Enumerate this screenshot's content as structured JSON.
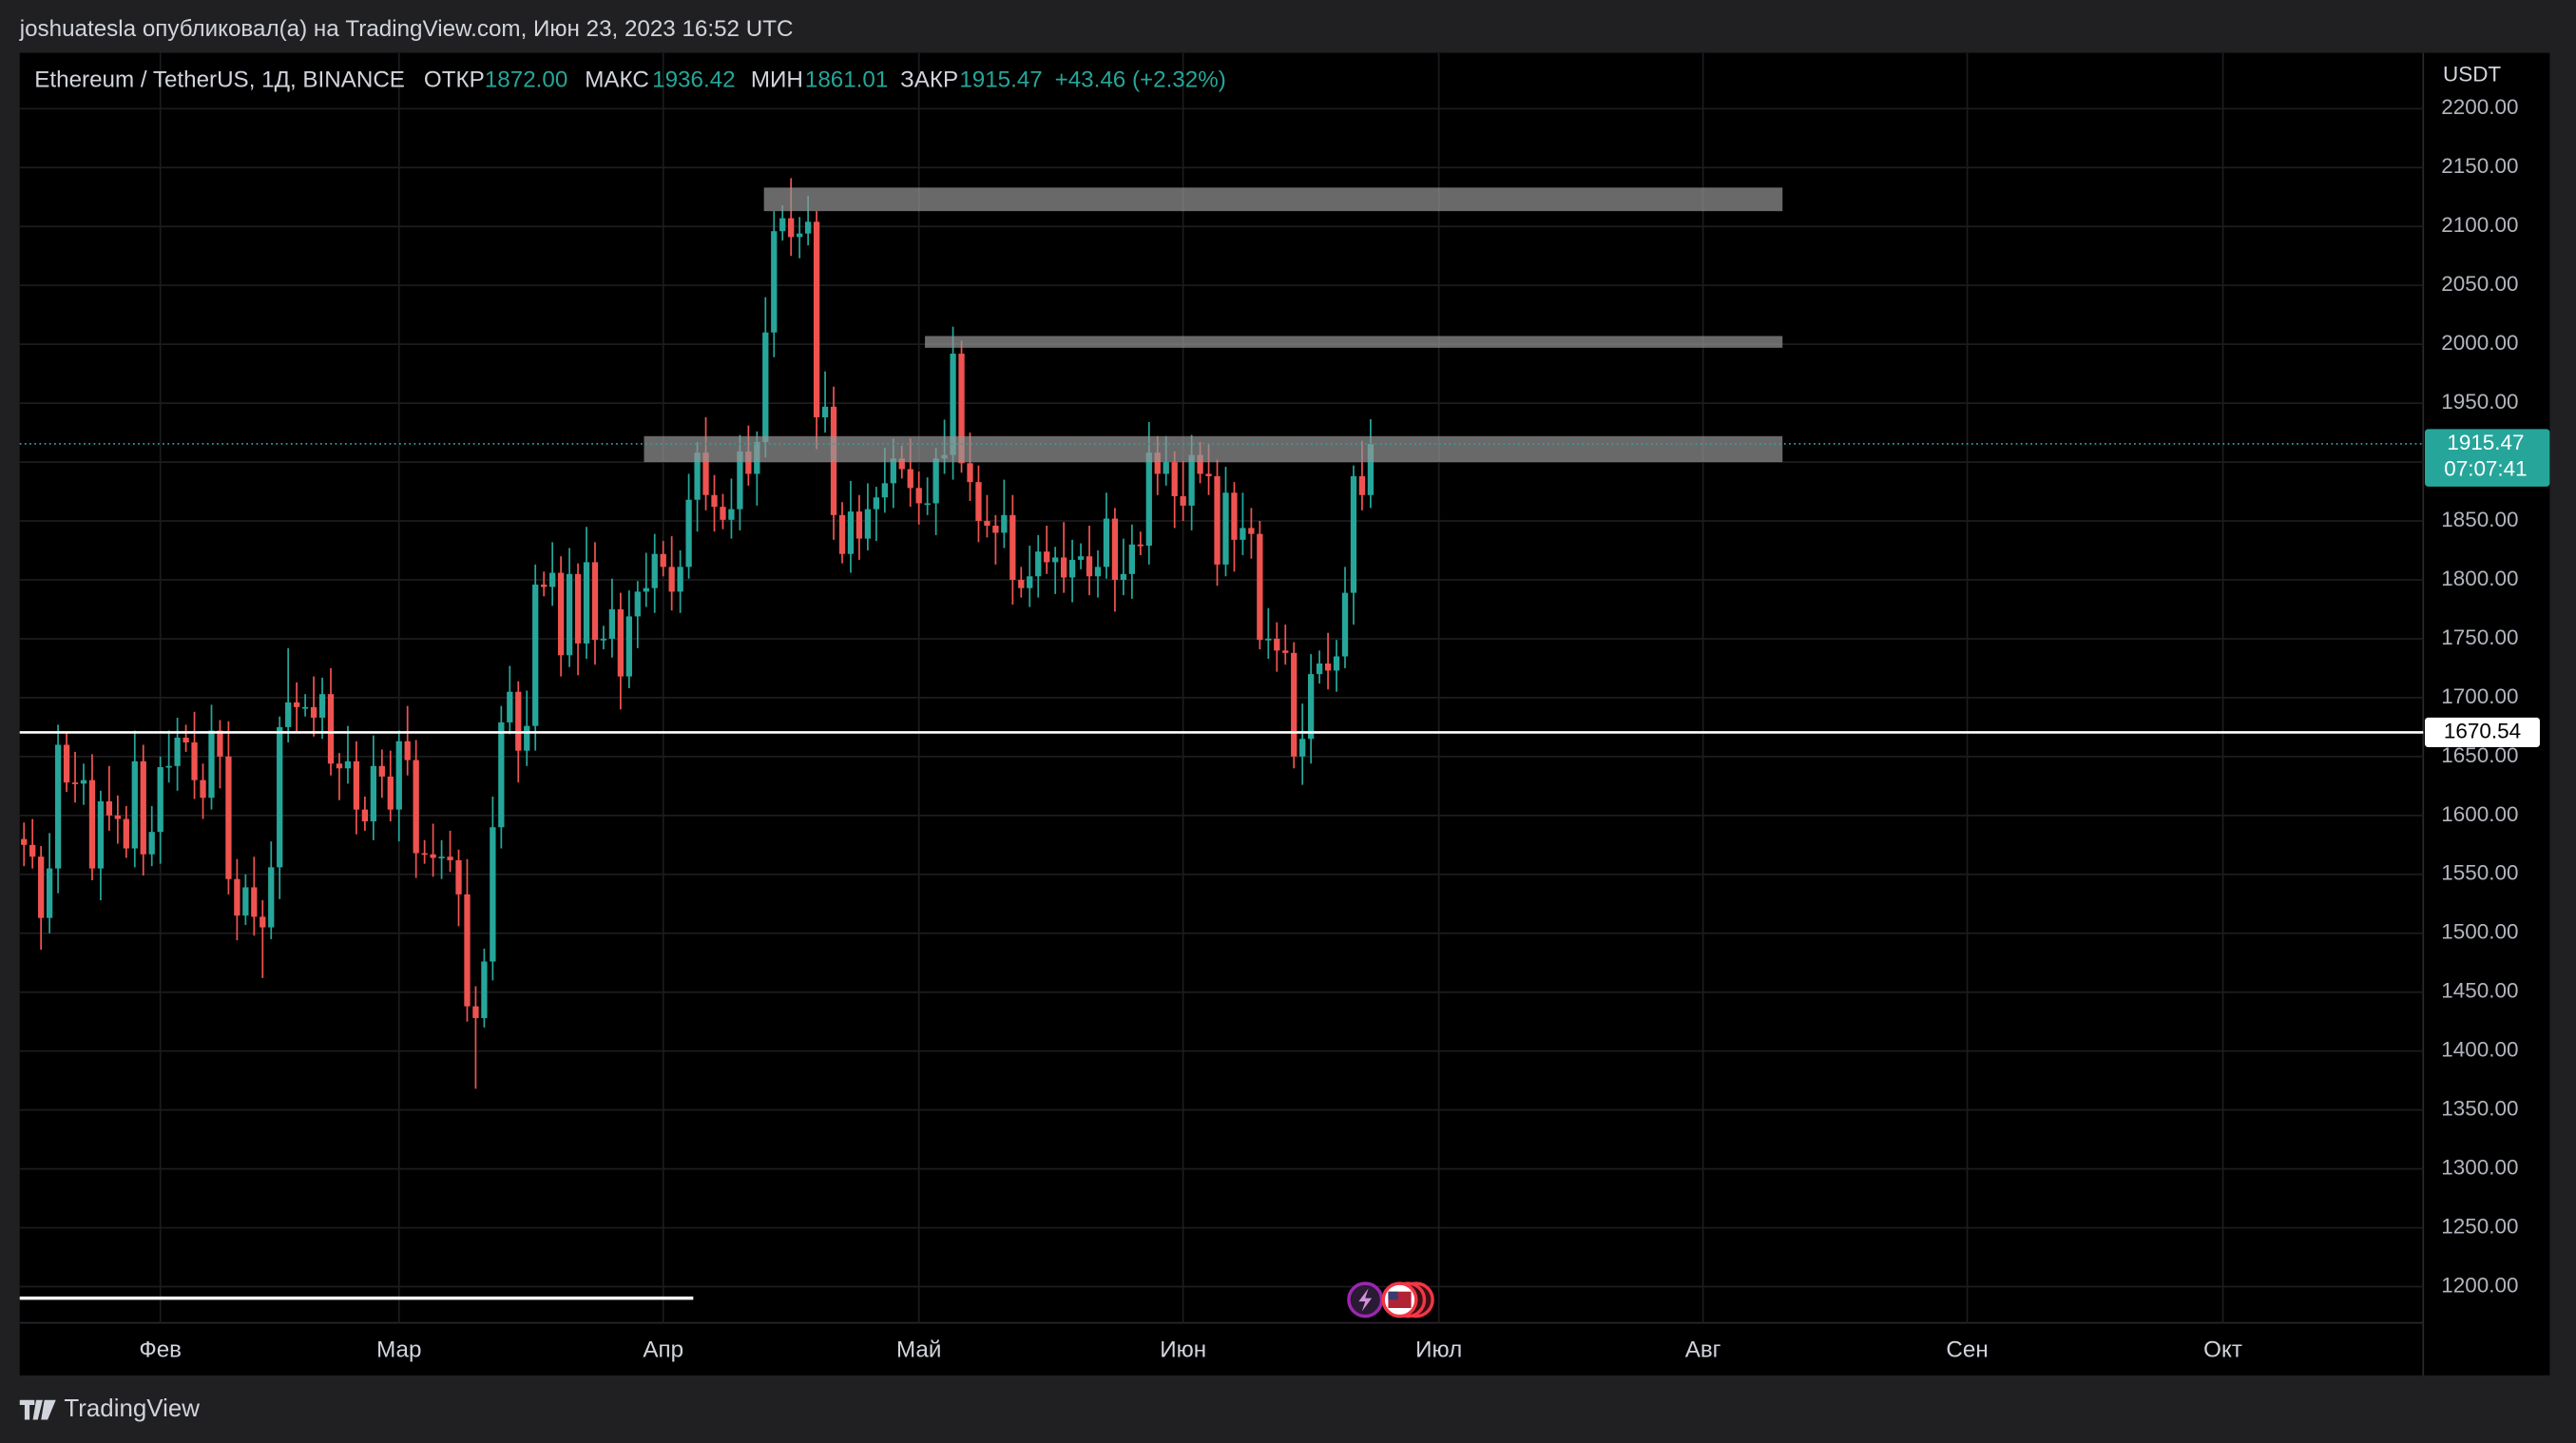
{
  "header": {
    "publisher": "joshuatesla опубликовал(а) на TradingView.com, Июн 23, 2023 16:52 UTC"
  },
  "legend_info": {
    "symbol": "Ethereum / TetherUS, 1Д, BINANCE",
    "open_label": "ОТКР",
    "open": "1872.00",
    "high_label": "МАКС",
    "high": "1936.42",
    "low_label": "МИН",
    "low": "1861.01",
    "close_label": "ЗАКР",
    "close": "1915.47",
    "change": "+43.46 (+2.32%)"
  },
  "footer": {
    "brand": "TradingView"
  },
  "chart_data": {
    "type": "candlestick",
    "unit": "USDT",
    "up_color": "#26a69a",
    "down_color": "#ef5350",
    "grid": true,
    "ylim": [
      1169.3,
      2247.4
    ],
    "yticks": [
      {
        "value": 1200,
        "label": "1200.00"
      },
      {
        "value": 1250,
        "label": "1250.00"
      },
      {
        "value": 1300,
        "label": "1300.00"
      },
      {
        "value": 1350,
        "label": "1350.00"
      },
      {
        "value": 1400,
        "label": "1400.00"
      },
      {
        "value": 1450,
        "label": "1450.00"
      },
      {
        "value": 1500,
        "label": "1500.00"
      },
      {
        "value": 1550,
        "label": "1550.00"
      },
      {
        "value": 1600,
        "label": "1600.00"
      },
      {
        "value": 1650,
        "label": "1650.00"
      },
      {
        "value": 1700,
        "label": "1700.00"
      },
      {
        "value": 1750,
        "label": "1750.00"
      },
      {
        "value": 1800,
        "label": "1800.00"
      },
      {
        "value": 1850,
        "label": "1850.00"
      },
      {
        "value": 1900,
        "label": "1900.00"
      },
      {
        "value": 1950,
        "label": "1950.00"
      },
      {
        "value": 2000,
        "label": "2000.00"
      },
      {
        "value": 2050,
        "label": "2050.00"
      },
      {
        "value": 2100,
        "label": "2100.00"
      },
      {
        "value": 2150,
        "label": "2150.00"
      },
      {
        "value": 2200,
        "label": "2200.00"
      }
    ],
    "categories": [
      null,
      null,
      null,
      null,
      null,
      null,
      null,
      null,
      null,
      null,
      null,
      null,
      null,
      null,
      null,
      null,
      "Фев",
      null,
      null,
      null,
      null,
      null,
      null,
      null,
      null,
      null,
      null,
      null,
      null,
      null,
      null,
      null,
      null,
      null,
      null,
      null,
      null,
      null,
      null,
      null,
      null,
      null,
      null,
      null,
      "Мар",
      null,
      null,
      null,
      null,
      null,
      null,
      null,
      null,
      null,
      null,
      null,
      null,
      null,
      null,
      null,
      null,
      null,
      null,
      null,
      null,
      null,
      null,
      null,
      null,
      null,
      null,
      null,
      null,
      null,
      null,
      "Апр",
      null,
      null,
      null,
      null,
      null,
      null,
      null,
      null,
      null,
      null,
      null,
      null,
      null,
      null,
      null,
      null,
      null,
      null,
      null,
      null,
      null,
      null,
      null,
      null,
      null,
      null,
      null,
      null,
      null,
      "Май",
      null,
      null,
      null,
      null,
      null,
      null,
      null,
      null,
      null,
      null,
      null,
      null,
      null,
      null,
      null,
      null,
      null,
      null,
      null,
      null,
      null,
      null,
      null,
      null,
      null,
      null,
      null,
      null,
      null,
      null,
      "Июн",
      null,
      null,
      null,
      null,
      null,
      null,
      null,
      null,
      null,
      null,
      null,
      null,
      null,
      null,
      null,
      null,
      null,
      null,
      null,
      null,
      null,
      null,
      null,
      null,
      null,
      null,
      null,
      null,
      null,
      "Июл",
      null,
      null,
      null,
      null,
      null,
      null,
      null,
      null,
      null,
      null,
      null,
      null,
      null,
      null,
      null,
      null,
      null,
      null,
      null,
      null,
      null,
      null,
      null,
      null,
      null,
      null,
      null,
      null,
      null,
      null,
      "Авг",
      null,
      null,
      null,
      null,
      null,
      null,
      null,
      null,
      null,
      null,
      null,
      null,
      null,
      null,
      null,
      null,
      null,
      null,
      null,
      null,
      null,
      null,
      null,
      null,
      null,
      null,
      null,
      null,
      null,
      null,
      "Сен",
      null,
      null,
      null,
      null,
      null,
      null,
      null,
      null,
      null,
      null,
      null,
      null,
      null,
      null,
      null,
      null,
      null,
      null,
      null,
      null,
      null,
      null,
      null,
      null,
      null,
      null,
      null,
      null,
      null,
      "Окт",
      null,
      null,
      null,
      null,
      null,
      null,
      null,
      null,
      null,
      null,
      null,
      null,
      null,
      null,
      null,
      null,
      null,
      null,
      null,
      null,
      null,
      null,
      null
    ],
    "open": [
      1580,
      1575,
      1565,
      1513,
      1555,
      1660,
      1628,
      1627,
      1630,
      1555,
      1612,
      1600,
      1597,
      1572,
      1646,
      1567,
      1586,
      1641,
      1642,
      1666,
      1662,
      1630,
      1615,
      1672,
      1650,
      1546,
      1515,
      1539,
      1514,
      1505,
      1556,
      1675,
      1696,
      1692,
      1692,
      1683,
      1703,
      1644,
      1640,
      1646,
      1605,
      1595,
      1642,
      1633,
      1605,
      1663,
      1647,
      1568,
      1567,
      1564,
      1565,
      1562,
      1533,
      1438,
      1428,
      1476,
      1590,
      1679,
      1705,
      1655,
      1676,
      1796,
      1794,
      1806,
      1736,
      1805,
      1746,
      1815,
      1749,
      1750,
      1775,
      1718,
      1769,
      1790,
      1793,
      1822,
      1811,
      1790,
      1811,
      1868,
      1908,
      1872,
      1862,
      1851,
      1860,
      1909,
      1890,
      1917,
      2010,
      2096,
      2107,
      2091,
      2094,
      2104,
      1938,
      1947,
      1855,
      1822,
      1858,
      1835,
      1860,
      1870,
      1882,
      1903,
      1894,
      1878,
      1865,
      1865,
      1903,
      1906,
      1992,
      1899,
      1883,
      1850,
      1846,
      1840,
      1855,
      1800,
      1793,
      1803,
      1824,
      1815,
      1819,
      1802,
      1817,
      1820,
      1803,
      1811,
      1852,
      1800,
      1805,
      1830,
      1829,
      1908,
      1890,
      1900,
      1871,
      1863,
      1906,
      1890,
      1888,
      1813,
      1874,
      1834,
      1844,
      1839,
      1749,
      1750,
      1740,
      1738,
      1650,
      1665,
      1720,
      1729,
      1723,
      1735,
      1789,
      1888,
      1872,
      null,
      null,
      null,
      null,
      null,
      null,
      null,
      null,
      null,
      null,
      null,
      null,
      null,
      null,
      null,
      null,
      null,
      null,
      null,
      null,
      null,
      null,
      null,
      null,
      null,
      null,
      null,
      null,
      null,
      null,
      null,
      null,
      null,
      null,
      null,
      null,
      null,
      null,
      null,
      null,
      null,
      null,
      null,
      null,
      null,
      null,
      null,
      null,
      null,
      null,
      null,
      null,
      null,
      null,
      null,
      null,
      null,
      null,
      null,
      null,
      null,
      null,
      null,
      null,
      null,
      null,
      null,
      null,
      null,
      null,
      null,
      null,
      null,
      null,
      null,
      null,
      null,
      null,
      null,
      null,
      null,
      null,
      null,
      null,
      null,
      null,
      null,
      null,
      null,
      null,
      null,
      null,
      null,
      null,
      null,
      null,
      null,
      null,
      null,
      null,
      null,
      null,
      null,
      null,
      null,
      null,
      null,
      null,
      null,
      null,
      null,
      null,
      null,
      null,
      null,
      null,
      null,
      null,
      null,
      null,
      null,
      null,
      null
    ],
    "high": [
      1594,
      1597,
      1574,
      1585,
      1677,
      1671,
      1654,
      1644,
      1652,
      1621,
      1642,
      1617,
      1608,
      1672,
      1660,
      1608,
      1650,
      1672,
      1683,
      1677,
      1688,
      1644,
      1694,
      1681,
      1680,
      1563,
      1550,
      1565,
      1528,
      1578,
      1684,
      1742,
      1713,
      1703,
      1718,
      1717,
      1725,
      1653,
      1676,
      1663,
      1616,
      1668,
      1656,
      1655,
      1672,
      1693,
      1664,
      1579,
      1593,
      1579,
      1587,
      1571,
      1563,
      1455,
      1487,
      1616,
      1693,
      1727,
      1714,
      1706,
      1813,
      1807,
      1832,
      1820,
      1827,
      1814,
      1845,
      1832,
      1761,
      1801,
      1789,
      1791,
      1799,
      1823,
      1839,
      1833,
      1837,
      1825,
      1890,
      1917,
      1938,
      1889,
      1873,
      1886,
      1923,
      1931,
      1926,
      2040,
      2113,
      2118,
      2141,
      2108,
      2126,
      2113,
      1977,
      1964,
      1866,
      1884,
      1872,
      1882,
      1879,
      1912,
      1920,
      1914,
      1920,
      1892,
      1887,
      1912,
      1936,
      2015,
      2003,
      1925,
      1897,
      1872,
      1855,
      1885,
      1872,
      1811,
      1829,
      1838,
      1846,
      1828,
      1849,
      1834,
      1831,
      1846,
      1825,
      1874,
      1861,
      1835,
      1847,
      1841,
      1934,
      1922,
      1922,
      1909,
      1901,
      1923,
      1917,
      1916,
      1902,
      1896,
      1883,
      1874,
      1861,
      1850,
      1776,
      1764,
      1762,
      1747,
      1695,
      1737,
      1740,
      1755,
      1749,
      1811,
      1897,
      1918,
      1936.42,
      null,
      null,
      null,
      null,
      null,
      null,
      null,
      null,
      null,
      null,
      null,
      null,
      null,
      null,
      null,
      null,
      null,
      null,
      null,
      null,
      null,
      null,
      null,
      null,
      null,
      null,
      null,
      null,
      null,
      null,
      null,
      null,
      null,
      null,
      null,
      null,
      null,
      null,
      null,
      null,
      null,
      null,
      null,
      null,
      null,
      null,
      null,
      null,
      null,
      null,
      null,
      null,
      null,
      null,
      null,
      null,
      null,
      null,
      null,
      null,
      null,
      null,
      null,
      null,
      null,
      null,
      null,
      null,
      null,
      null,
      null,
      null,
      null,
      null,
      null,
      null,
      null,
      null,
      null,
      null,
      null,
      null,
      null,
      null,
      null,
      null,
      null,
      null,
      null,
      null,
      null,
      null,
      null,
      null,
      null,
      null,
      null,
      null,
      null,
      null,
      null,
      null,
      null,
      null,
      null,
      null,
      null,
      null,
      null,
      null,
      null,
      null,
      null,
      null,
      null,
      null,
      null,
      null,
      null,
      null,
      null,
      null,
      null
    ],
    "low": [
      1557,
      1555,
      1486,
      1500,
      1534,
      1620,
      1611,
      1609,
      1545,
      1528,
      1587,
      1576,
      1564,
      1556,
      1549,
      1557,
      1559,
      1628,
      1621,
      1654,
      1614,
      1597,
      1605,
      1623,
      1533,
      1494,
      1507,
      1498,
      1462,
      1495,
      1529,
      1662,
      1671,
      1684,
      1667,
      1665,
      1634,
      1613,
      1627,
      1584,
      1587,
      1579,
      1615,
      1595,
      1578,
      1634,
      1547,
      1559,
      1548,
      1546,
      1552,
      1506,
      1425,
      1368,
      1420,
      1460,
      1572,
      1669,
      1628,
      1642,
      1655,
      1786,
      1778,
      1718,
      1726,
      1719,
      1733,
      1728,
      1741,
      1734,
      1690,
      1708,
      1742,
      1777,
      1772,
      1803,
      1774,
      1772,
      1801,
      1841,
      1859,
      1841,
      1843,
      1835,
      1842,
      1880,
      1863,
      1904,
      1989,
      2088,
      2075,
      2073,
      2084,
      1911,
      1925,
      1834,
      1814,
      1806,
      1817,
      1825,
      1833,
      1857,
      1861,
      1886,
      1862,
      1847,
      1855,
      1838,
      1890,
      1885,
      1891,
      1867,
      1832,
      1836,
      1813,
      1827,
      1779,
      1785,
      1777,
      1785,
      1805,
      1788,
      1789,
      1781,
      1809,
      1787,
      1785,
      1801,
      1773,
      1787,
      1784,
      1821,
      1813,
      1872,
      1880,
      1844,
      1850,
      1842,
      1882,
      1872,
      1795,
      1803,
      1807,
      1821,
      1818,
      1741,
      1733,
      1722,
      1728,
      1640,
      1626,
      1644,
      1712,
      1707,
      1705,
      1725,
      1762,
      1859,
      1861.01,
      null,
      null,
      null,
      null,
      null,
      null,
      null,
      null,
      null,
      null,
      null,
      null,
      null,
      null,
      null,
      null,
      null,
      null,
      null,
      null,
      null,
      null,
      null,
      null,
      null,
      null,
      null,
      null,
      null,
      null,
      null,
      null,
      null,
      null,
      null,
      null,
      null,
      null,
      null,
      null,
      null,
      null,
      null,
      null,
      null,
      null,
      null,
      null,
      null,
      null,
      null,
      null,
      null,
      null,
      null,
      null,
      null,
      null,
      null,
      null,
      null,
      null,
      null,
      null,
      null,
      null,
      null,
      null,
      null,
      null,
      null,
      null,
      null,
      null,
      null,
      null,
      null,
      null,
      null,
      null,
      null,
      null,
      null,
      null,
      null,
      null,
      null,
      null,
      null,
      null,
      null,
      null,
      null,
      null,
      null,
      null,
      null,
      null,
      null,
      null,
      null,
      null,
      null,
      null,
      null,
      null,
      null,
      null,
      null,
      null,
      null,
      null,
      null,
      null,
      null,
      null,
      null,
      null,
      null,
      null,
      null,
      null,
      null
    ],
    "close": [
      1575,
      1565,
      1513,
      1555,
      1660,
      1628,
      1627,
      1630,
      1555,
      1612,
      1600,
      1597,
      1572,
      1646,
      1567,
      1586,
      1641,
      1642,
      1666,
      1662,
      1630,
      1615,
      1672,
      1650,
      1546,
      1515,
      1539,
      1514,
      1505,
      1556,
      1675,
      1696,
      1692,
      1692,
      1683,
      1703,
      1644,
      1640,
      1646,
      1605,
      1595,
      1642,
      1633,
      1605,
      1663,
      1647,
      1568,
      1567,
      1564,
      1565,
      1562,
      1533,
      1438,
      1428,
      1476,
      1590,
      1679,
      1705,
      1655,
      1676,
      1796,
      1794,
      1806,
      1736,
      1805,
      1746,
      1815,
      1749,
      1750,
      1775,
      1718,
      1769,
      1790,
      1793,
      1822,
      1811,
      1790,
      1811,
      1868,
      1908,
      1872,
      1862,
      1851,
      1860,
      1909,
      1890,
      1917,
      2010,
      2096,
      2107,
      2091,
      2094,
      2104,
      1938,
      1947,
      1855,
      1822,
      1858,
      1835,
      1860,
      1870,
      1882,
      1903,
      1894,
      1878,
      1865,
      1865,
      1903,
      1906,
      1992,
      1899,
      1883,
      1850,
      1846,
      1840,
      1855,
      1800,
      1793,
      1803,
      1824,
      1815,
      1819,
      1802,
      1817,
      1820,
      1803,
      1811,
      1852,
      1800,
      1805,
      1830,
      1829,
      1908,
      1890,
      1900,
      1871,
      1863,
      1906,
      1890,
      1888,
      1813,
      1874,
      1834,
      1844,
      1839,
      1749,
      1750,
      1740,
      1738,
      1650,
      1665,
      1720,
      1729,
      1723,
      1735,
      1789,
      1888,
      1872,
      1915.47,
      null,
      null,
      null,
      null,
      null,
      null,
      null,
      null,
      null,
      null,
      null,
      null,
      null,
      null,
      null,
      null,
      null,
      null,
      null,
      null,
      null,
      null,
      null,
      null,
      null,
      null,
      null,
      null,
      null,
      null,
      null,
      null,
      null,
      null,
      null,
      null,
      null,
      null,
      null,
      null,
      null,
      null,
      null,
      null,
      null,
      null,
      null,
      null,
      null,
      null,
      null,
      null,
      null,
      null,
      null,
      null,
      null,
      null,
      null,
      null,
      null,
      null,
      null,
      null,
      null,
      null,
      null,
      null,
      null,
      null,
      null,
      null,
      null,
      null,
      null,
      null,
      null,
      null,
      null,
      null,
      null,
      null,
      null,
      null,
      null,
      null,
      null,
      null,
      null,
      null,
      null,
      null,
      null,
      null,
      null,
      null,
      null,
      null,
      null,
      null,
      null,
      null,
      null,
      null,
      null,
      null,
      null,
      null,
      null,
      null,
      null,
      null,
      null,
      null,
      null,
      null,
      null,
      null,
      null,
      null,
      null,
      null,
      null
    ],
    "zones": [
      {
        "low": 2113,
        "high": 2133
      },
      {
        "low": 1997,
        "high": 2007
      },
      {
        "low": 1900,
        "high": 1922
      }
    ],
    "last_price": 1915.47,
    "countdown": "07:07:41",
    "hline": 1670.54
  }
}
